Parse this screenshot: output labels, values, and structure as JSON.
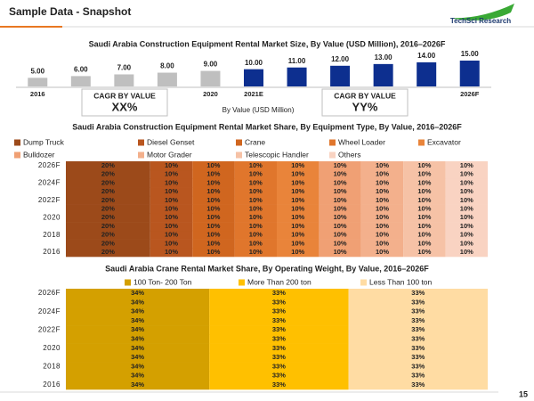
{
  "header": {
    "title": "Sample Data - Snapshot",
    "logo": "TechSci Research"
  },
  "page_number": "15",
  "chart_data": [
    {
      "type": "bar",
      "title": "Saudi Arabia Construction Equipment Rental Market Size, By Value (USD Million), 2016–2026F",
      "categories": [
        "2016",
        null,
        null,
        null,
        "2020",
        "2021E",
        null,
        null,
        null,
        null,
        "2026F"
      ],
      "values": [
        5,
        6,
        7,
        8,
        9,
        10,
        11,
        12,
        13,
        14,
        15
      ],
      "value_labels": [
        "5.00",
        "6.00",
        "7.00",
        "8.00",
        "9.00",
        "10.00",
        "11.00",
        "12.00",
        "13.00",
        "14.00",
        "15.00"
      ],
      "colors": [
        "#bfbfbf",
        "#bfbfbf",
        "#bfbfbf",
        "#bfbfbf",
        "#bfbfbf",
        "#0d2f8f",
        "#0d2f8f",
        "#0d2f8f",
        "#0d2f8f",
        "#0d2f8f",
        "#0d2f8f"
      ],
      "ylim": [
        0,
        15
      ],
      "x_label": "By Value (USD Million)",
      "cagr_boxes": [
        {
          "label": "CAGR BY VALUE",
          "value": "XX%"
        },
        {
          "label": "CAGR BY VALUE",
          "value": "YY%"
        }
      ]
    },
    {
      "type": "stacked_bar",
      "orientation": "horizontal",
      "title": "Saudi Arabia Construction Equipment Rental Market Share, By Equipment Type, By Value, 2016–2026F",
      "categories": [
        "2016",
        null,
        "2018",
        null,
        "2020",
        null,
        "2022F",
        null,
        "2024F",
        null,
        "2026F"
      ],
      "xlim": [
        0,
        100
      ],
      "series": [
        {
          "name": "Dump Truck",
          "color": "#9c4a1a",
          "values": [
            20,
            20,
            20,
            20,
            20,
            20,
            20,
            20,
            20,
            20,
            20
          ],
          "value_labels": [
            "20%",
            "20%",
            "20%",
            "20%",
            "20%",
            "20%",
            "20%",
            "20%",
            "20%",
            "20%",
            "20%"
          ]
        },
        {
          "name": "Diesel Genset",
          "color": "#b9561f",
          "values": [
            10,
            10,
            10,
            10,
            10,
            10,
            10,
            10,
            10,
            10,
            10
          ],
          "value_labels": [
            "10%",
            "10%",
            "10%",
            "10%",
            "10%",
            "10%",
            "10%",
            "10%",
            "10%",
            "10%",
            "10%"
          ]
        },
        {
          "name": "Crane",
          "color": "#d0661f",
          "values": [
            10,
            10,
            10,
            10,
            10,
            10,
            10,
            10,
            10,
            10,
            10
          ],
          "value_labels": [
            "10%",
            "10%",
            "10%",
            "10%",
            "10%",
            "10%",
            "10%",
            "10%",
            "10%",
            "10%",
            "10%"
          ]
        },
        {
          "name": "Wheel Loader",
          "color": "#e0762c",
          "values": [
            10,
            10,
            10,
            10,
            10,
            10,
            10,
            10,
            10,
            10,
            10
          ],
          "value_labels": [
            "10%",
            "10%",
            "10%",
            "10%",
            "10%",
            "10%",
            "10%",
            "10%",
            "10%",
            "10%",
            "10%"
          ]
        },
        {
          "name": "Excavator",
          "color": "#e9843a",
          "values": [
            10,
            10,
            10,
            10,
            10,
            10,
            10,
            10,
            10,
            10,
            10
          ],
          "value_labels": [
            "10%",
            "10%",
            "10%",
            "10%",
            "10%",
            "10%",
            "10%",
            "10%",
            "10%",
            "10%",
            "10%"
          ]
        },
        {
          "name": "Bulldozer",
          "color": "#f0a074",
          "values": [
            10,
            10,
            10,
            10,
            10,
            10,
            10,
            10,
            10,
            10,
            10
          ],
          "value_labels": [
            "10%",
            "10%",
            "10%",
            "10%",
            "10%",
            "10%",
            "10%",
            "10%",
            "10%",
            "10%",
            "10%"
          ]
        },
        {
          "name": "Motor Grader",
          "color": "#f3b08c",
          "values": [
            10,
            10,
            10,
            10,
            10,
            10,
            10,
            10,
            10,
            10,
            10
          ],
          "value_labels": [
            "10%",
            "10%",
            "10%",
            "10%",
            "10%",
            "10%",
            "10%",
            "10%",
            "10%",
            "10%",
            "10%"
          ]
        },
        {
          "name": "Telescopic Handler",
          "color": "#f6c2a6",
          "values": [
            10,
            10,
            10,
            10,
            10,
            10,
            10,
            10,
            10,
            10,
            10
          ],
          "value_labels": [
            "10%",
            "10%",
            "10%",
            "10%",
            "10%",
            "10%",
            "10%",
            "10%",
            "10%",
            "10%",
            "10%"
          ]
        },
        {
          "name": "Others",
          "color": "#f9d3c2",
          "values": [
            10,
            10,
            10,
            10,
            10,
            10,
            10,
            10,
            10,
            10,
            10
          ],
          "value_labels": [
            "10%",
            "10%",
            "10%",
            "10%",
            "10%",
            "10%",
            "10%",
            "10%",
            "10%",
            "10%",
            "10%"
          ]
        }
      ]
    },
    {
      "type": "stacked_bar",
      "orientation": "horizontal",
      "title": "Saudi Arabia Crane Rental Market Share, By Operating Weight, By Value, 2016–2026F",
      "categories": [
        "2016",
        null,
        "2018",
        null,
        "2020",
        null,
        "2022F",
        null,
        "2024F",
        null,
        "2026F"
      ],
      "xlim": [
        0,
        100
      ],
      "series": [
        {
          "name": "100 Ton- 200 Ton",
          "color": "#d4a000",
          "values": [
            34,
            34,
            34,
            34,
            34,
            34,
            34,
            34,
            34,
            34,
            34
          ],
          "value_labels": [
            "34%",
            "34%",
            "34%",
            "34%",
            "34%",
            "34%",
            "34%",
            "34%",
            "34%",
            "34%",
            "34%"
          ]
        },
        {
          "name": "More Than 200 ton",
          "color": "#ffc000",
          "values": [
            33,
            33,
            33,
            33,
            33,
            33,
            33,
            33,
            33,
            33,
            33
          ],
          "value_labels": [
            "33%",
            "33%",
            "33%",
            "33%",
            "33%",
            "33%",
            "33%",
            "33%",
            "33%",
            "33%",
            "33%"
          ]
        },
        {
          "name": "Less Than 100 ton",
          "color": "#ffdca3",
          "values": [
            33,
            33,
            33,
            33,
            33,
            33,
            33,
            33,
            33,
            33,
            33
          ],
          "value_labels": [
            "33%",
            "33%",
            "33%",
            "33%",
            "33%",
            "33%",
            "33%",
            "33%",
            "33%",
            "33%",
            "33%"
          ]
        }
      ]
    }
  ]
}
